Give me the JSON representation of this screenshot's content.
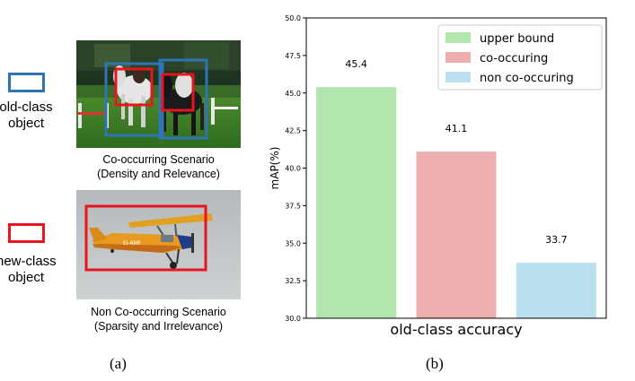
{
  "panel_a": {
    "label": "(a)",
    "old_class_label": [
      "old-class",
      "object"
    ],
    "new_class_label": [
      "new-class",
      "object"
    ],
    "old_class_color": "#2e75b6",
    "new_class_color": "#e8141e",
    "top_caption": [
      "Co-occurring Scenario",
      "(Density and Relevance)"
    ],
    "bottom_caption": [
      "Non Co-occurring Scenario",
      "(Sparsity and Irrelevance)"
    ],
    "airplane_registration": "EI-AMF"
  },
  "panel_b": {
    "label": "(b)"
  },
  "chart_data": {
    "type": "bar",
    "categories": [
      "upper bound",
      "co-occuring",
      "non co-occuring"
    ],
    "values": [
      45.4,
      41.1,
      33.7
    ],
    "value_labels": [
      "45.4",
      "41.1",
      "33.7"
    ],
    "colors": [
      "#b2e6ae",
      "#ecaeae",
      "#bcdfef"
    ],
    "ylabel": "mAP(%)",
    "xlabel": "old-class accuracy",
    "ylim": [
      30.0,
      50.0
    ],
    "yticks": [
      "30.0",
      "32.5",
      "35.0",
      "37.5",
      "40.0",
      "42.5",
      "45.0",
      "47.5",
      "50.0"
    ],
    "legend": {
      "placement": "top-right",
      "entries": [
        "upper bound",
        "co-occuring",
        "non co-occuring"
      ]
    },
    "grid": false
  }
}
